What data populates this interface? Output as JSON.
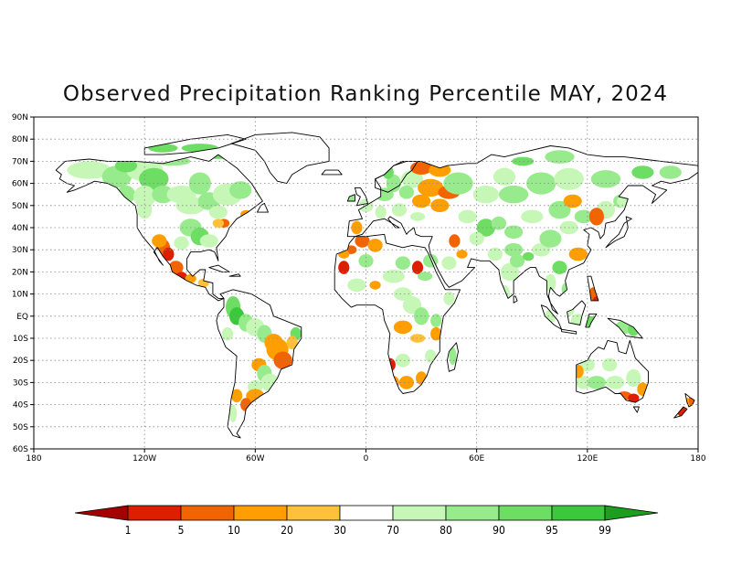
{
  "title": "Observed Precipitation Ranking Percentile MAY, 2024",
  "map": {
    "lon_range": [
      -180,
      180
    ],
    "lat_range": [
      -60,
      90
    ],
    "grid": true,
    "lat_labels": [
      "90N",
      "80N",
      "70N",
      "60N",
      "50N",
      "40N",
      "30N",
      "20N",
      "10N",
      "EQ",
      "10S",
      "20S",
      "30S",
      "40S",
      "50S",
      "60S"
    ],
    "lon_labels": [
      "180",
      "120W",
      "60W",
      "0",
      "60E",
      "120E",
      "180"
    ]
  },
  "colorbar": {
    "labels": [
      "1",
      "5",
      "10",
      "20",
      "30",
      "70",
      "80",
      "90",
      "95",
      "99"
    ],
    "colors": [
      "#a50000",
      "#dd1f00",
      "#f26400",
      "#ff9e00",
      "#ffc03a",
      "#ffffff",
      "#c7f7b7",
      "#97eb8c",
      "#6ddd63",
      "#3cc83c",
      "#1e9e1e"
    ]
  }
}
